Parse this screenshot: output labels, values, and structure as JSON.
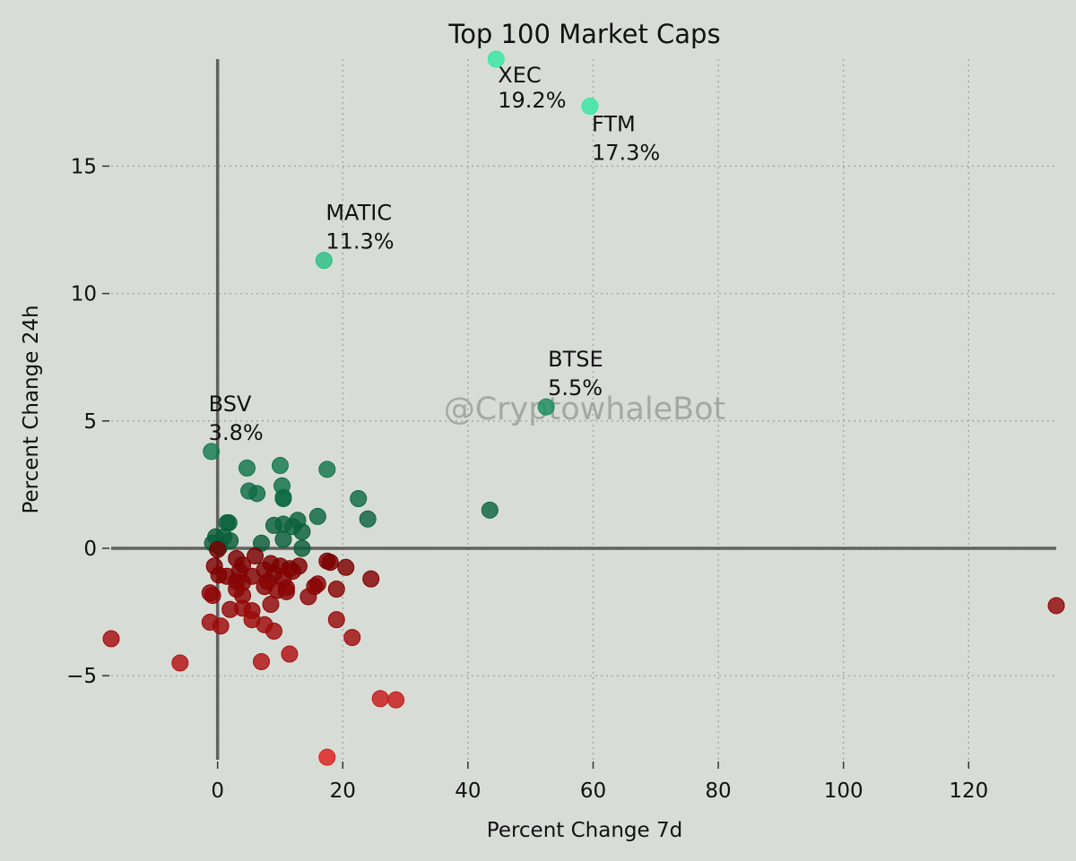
{
  "chart_data": {
    "type": "scatter",
    "title": "Top 100 Market Caps",
    "xlabel": "Percent Change 7d",
    "ylabel": "Percent Change 24h",
    "watermark": "@CryptowhaleBot",
    "xlim": [
      -17,
      134
    ],
    "ylim": [
      -8.3,
      19.2
    ],
    "xticks": [
      0,
      20,
      40,
      60,
      80,
      100,
      120
    ],
    "yticks": [
      -5,
      0,
      5,
      10,
      15
    ],
    "xtick_labels": [
      "0",
      "20",
      "40",
      "60",
      "80",
      "100",
      "120"
    ],
    "ytick_labels": [
      "−5",
      "0",
      "5",
      "10",
      "15"
    ],
    "grid": true,
    "colors": {
      "background": "#d7ddd6",
      "positive_low": "#0b5e3a",
      "positive_high": "#37e6a3",
      "negative_low": "#7a0000",
      "negative_high": "#dd1f1f",
      "axis_line": "#555555",
      "grid": "#9ea39e"
    },
    "annotations": [
      {
        "name": "XEC",
        "pct": "19.2%",
        "x": 44.5,
        "y": 19.2
      },
      {
        "name": "FTM",
        "pct": "17.3%",
        "x": 59.5,
        "y": 17.35
      },
      {
        "name": "MATIC",
        "pct": "11.3%",
        "x": 17,
        "y": 11.3
      },
      {
        "name": "BTSE",
        "pct": "5.5%",
        "x": 52.5,
        "y": 5.55
      },
      {
        "name": "BSV",
        "pct": "3.8%",
        "x": -1,
        "y": 3.8
      }
    ],
    "points": [
      {
        "x": 44.5,
        "y": 19.2
      },
      {
        "x": 59.5,
        "y": 17.35
      },
      {
        "x": 17,
        "y": 11.3
      },
      {
        "x": 52.5,
        "y": 5.55
      },
      {
        "x": -1,
        "y": 3.8
      },
      {
        "x": 4.7,
        "y": 3.15
      },
      {
        "x": 10,
        "y": 3.25
      },
      {
        "x": 17.5,
        "y": 3.1
      },
      {
        "x": 10.3,
        "y": 2.45
      },
      {
        "x": 5,
        "y": 2.25
      },
      {
        "x": 6.3,
        "y": 2.15
      },
      {
        "x": 10.5,
        "y": 2.0
      },
      {
        "x": 10.5,
        "y": 1.95
      },
      {
        "x": 22.5,
        "y": 1.95
      },
      {
        "x": 43.5,
        "y": 1.5
      },
      {
        "x": 16,
        "y": 1.25
      },
      {
        "x": 24,
        "y": 1.15
      },
      {
        "x": 12.8,
        "y": 1.1
      },
      {
        "x": 1.8,
        "y": 1.0
      },
      {
        "x": 1.5,
        "y": 1.0
      },
      {
        "x": 10.5,
        "y": 0.95
      },
      {
        "x": 9,
        "y": 0.9
      },
      {
        "x": 12,
        "y": 0.85
      },
      {
        "x": 13.5,
        "y": 0.65
      },
      {
        "x": -0.3,
        "y": 0.45
      },
      {
        "x": 1.0,
        "y": 0.45
      },
      {
        "x": 2.0,
        "y": 0.3
      },
      {
        "x": 10.5,
        "y": 0.35
      },
      {
        "x": -0.8,
        "y": 0.2
      },
      {
        "x": 7.0,
        "y": 0.2
      },
      {
        "x": 0.3,
        "y": 0.05
      },
      {
        "x": 13.5,
        "y": 0.0
      },
      {
        "x": 0,
        "y": -0.05
      },
      {
        "x": 6.0,
        "y": -0.3
      },
      {
        "x": 3.0,
        "y": -0.4
      },
      {
        "x": 17.5,
        "y": -0.5
      },
      {
        "x": 18.0,
        "y": -0.55
      },
      {
        "x": 4.0,
        "y": -0.65
      },
      {
        "x": 8.5,
        "y": -0.6
      },
      {
        "x": 10.0,
        "y": -0.7
      },
      {
        "x": 13.0,
        "y": -0.7
      },
      {
        "x": 20.5,
        "y": -0.75
      },
      {
        "x": -0.5,
        "y": -0.7
      },
      {
        "x": 11.5,
        "y": -0.8
      },
      {
        "x": 7.5,
        "y": -0.85
      },
      {
        "x": 3.5,
        "y": -0.9
      },
      {
        "x": 12.0,
        "y": -0.9
      },
      {
        "x": 9.0,
        "y": -1.0
      },
      {
        "x": 0.2,
        "y": -1.05
      },
      {
        "x": 5.5,
        "y": -1.1
      },
      {
        "x": 1.5,
        "y": -1.1
      },
      {
        "x": 10.5,
        "y": -1.2
      },
      {
        "x": 24.5,
        "y": -1.2
      },
      {
        "x": 3.0,
        "y": -1.3
      },
      {
        "x": 8.0,
        "y": -1.3
      },
      {
        "x": 4.0,
        "y": -1.35
      },
      {
        "x": 16.0,
        "y": -1.4
      },
      {
        "x": 7.5,
        "y": -1.5
      },
      {
        "x": 15.5,
        "y": -1.5
      },
      {
        "x": 11.0,
        "y": -1.55
      },
      {
        "x": 3.0,
        "y": -1.6
      },
      {
        "x": 19.0,
        "y": -1.6
      },
      {
        "x": 9.5,
        "y": -1.65
      },
      {
        "x": 11.0,
        "y": -1.7
      },
      {
        "x": -1.2,
        "y": -1.75
      },
      {
        "x": -0.8,
        "y": -1.85
      },
      {
        "x": 4.0,
        "y": -1.85
      },
      {
        "x": 14.5,
        "y": -1.9
      },
      {
        "x": 8.5,
        "y": -2.2
      },
      {
        "x": 4.0,
        "y": -2.35
      },
      {
        "x": 2.0,
        "y": -2.4
      },
      {
        "x": 5.5,
        "y": -2.45
      },
      {
        "x": 5.5,
        "y": -2.8
      },
      {
        "x": 19.0,
        "y": -2.8
      },
      {
        "x": -1.2,
        "y": -2.9
      },
      {
        "x": 7.5,
        "y": -3.0
      },
      {
        "x": 0.5,
        "y": -3.05
      },
      {
        "x": 9.0,
        "y": -3.25
      },
      {
        "x": 21.5,
        "y": -3.5
      },
      {
        "x": -17,
        "y": -3.55
      },
      {
        "x": 11.5,
        "y": -4.15
      },
      {
        "x": 7.0,
        "y": -4.45
      },
      {
        "x": -6,
        "y": -4.5
      },
      {
        "x": 26,
        "y": -5.9
      },
      {
        "x": 28.5,
        "y": -5.95
      },
      {
        "x": 17.5,
        "y": -8.2
      },
      {
        "x": 134,
        "y": -2.25
      }
    ]
  }
}
